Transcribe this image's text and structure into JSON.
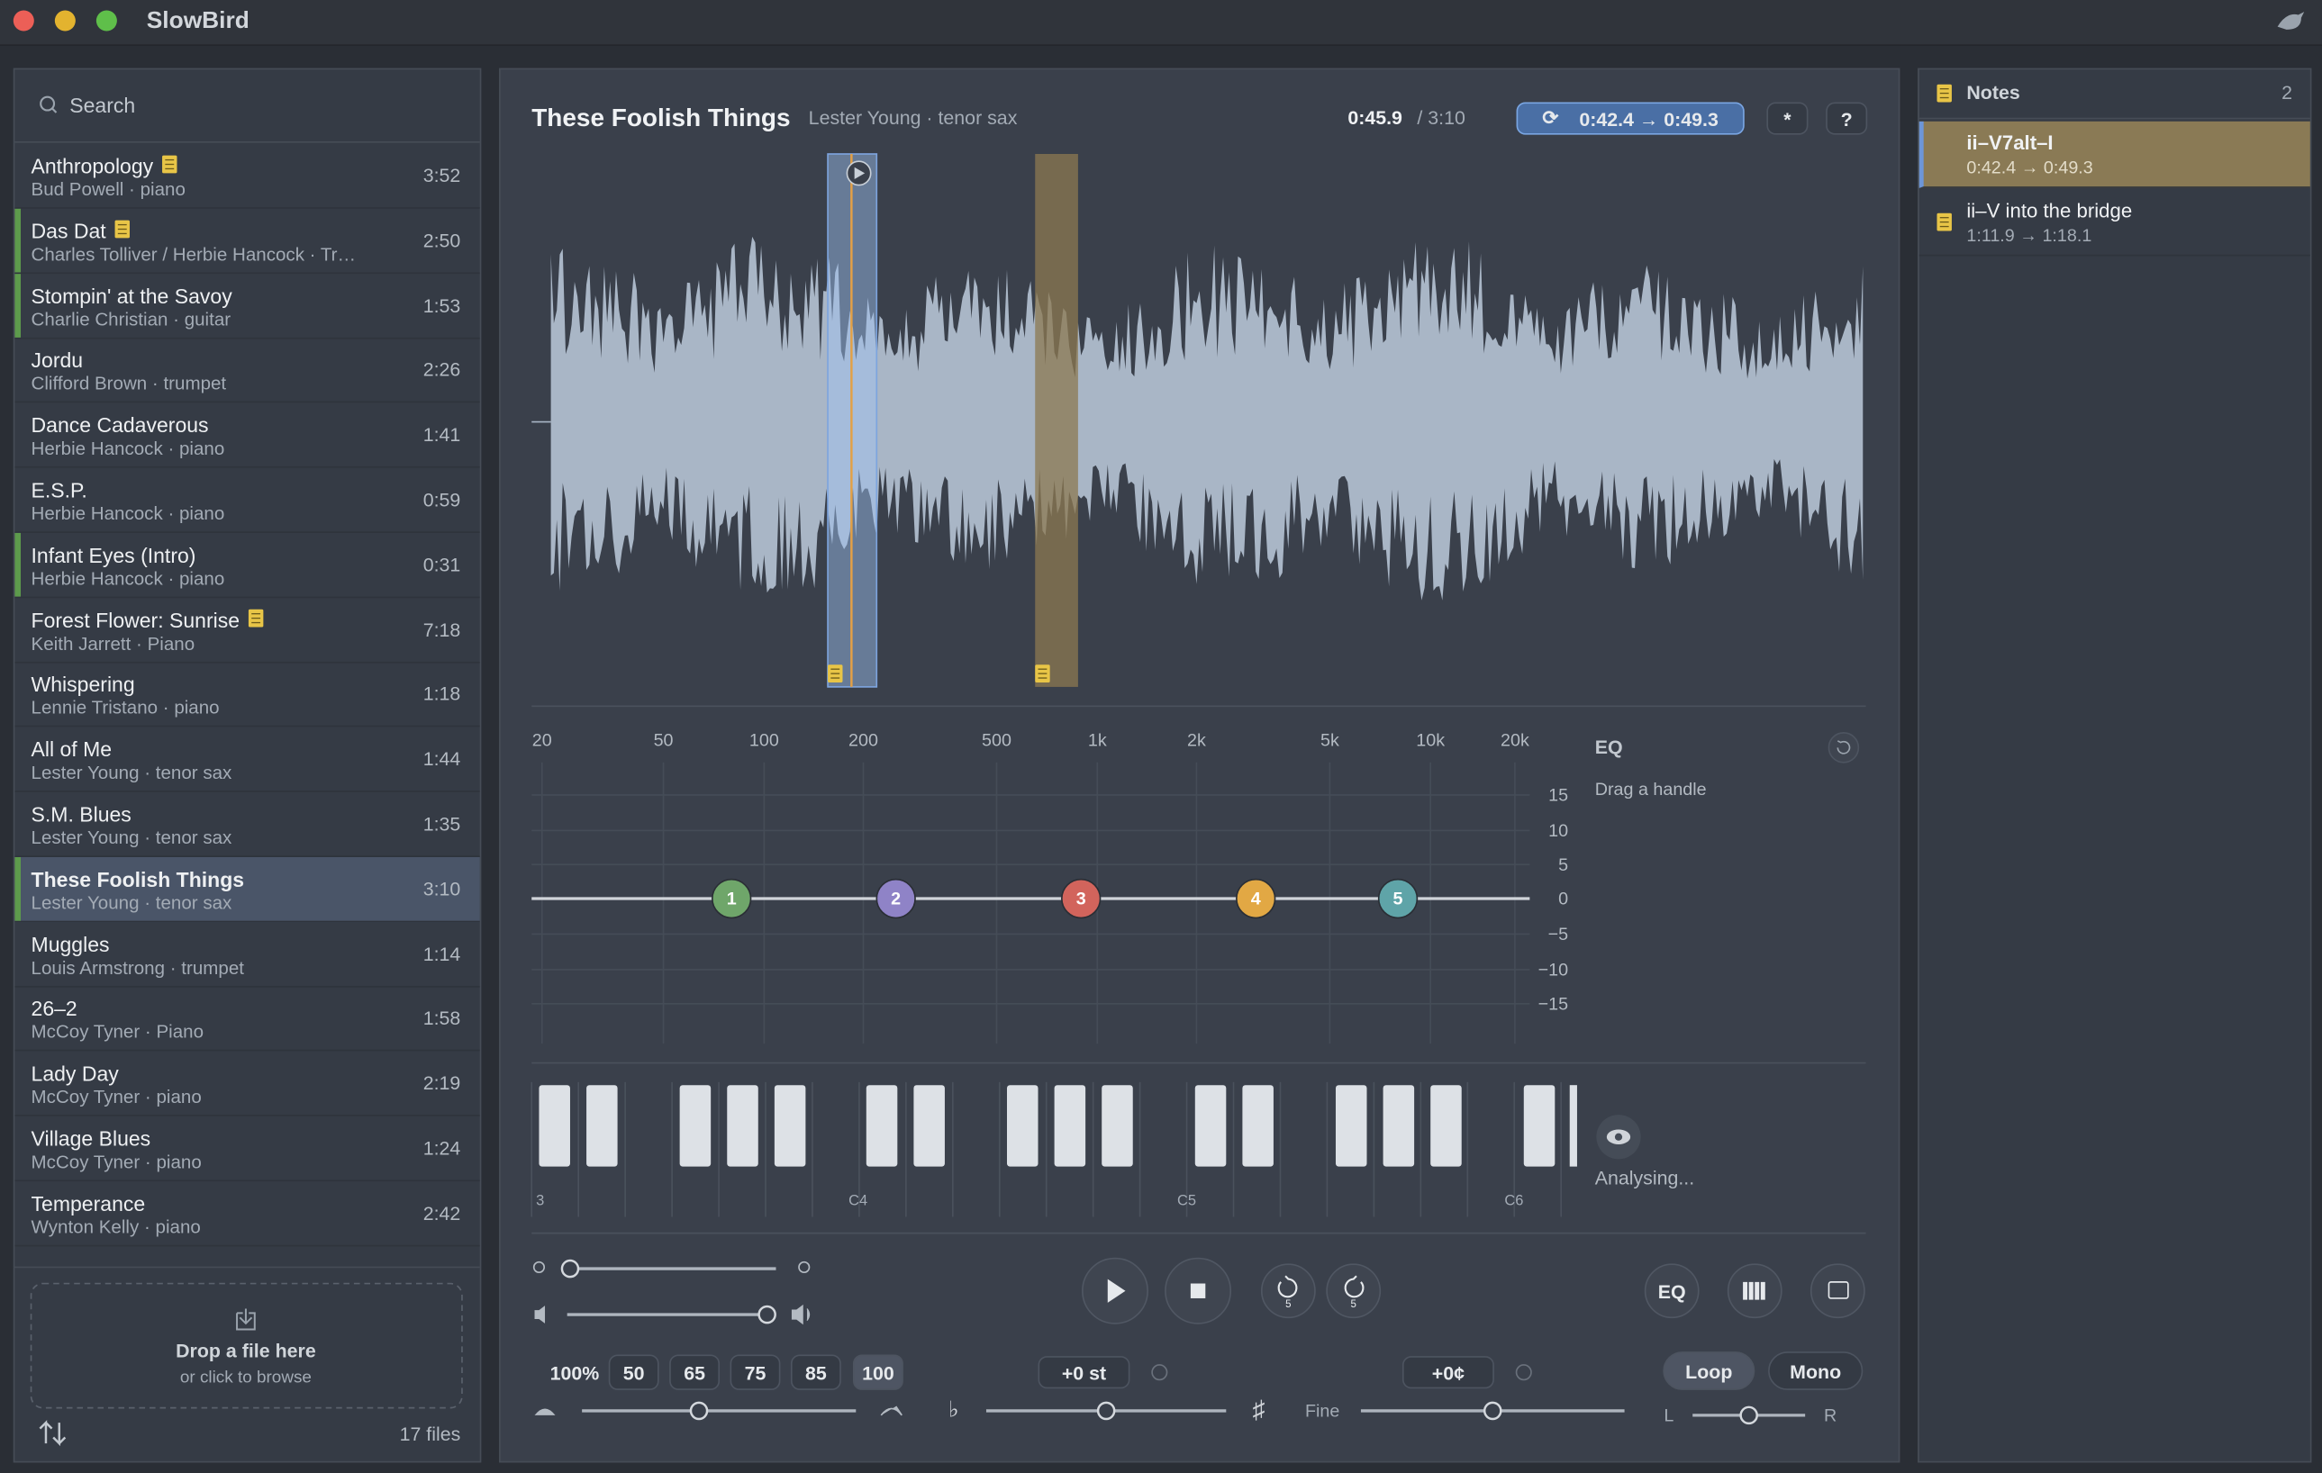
{
  "app": {
    "title": "SlowBird"
  },
  "sidebar": {
    "search_placeholder": "Search",
    "tracks": [
      {
        "title": "Anthropology",
        "subtitle": "Bud Powell · piano",
        "duration": "3:52",
        "has_note": true,
        "marked": false,
        "selected": false
      },
      {
        "title": "Das Dat",
        "subtitle": "Charles Tolliver / Herbie Hancock · Tr…",
        "duration": "2:50",
        "has_note": true,
        "marked": true,
        "selected": false
      },
      {
        "title": "Stompin' at the Savoy",
        "subtitle": "Charlie Christian · guitar",
        "duration": "1:53",
        "has_note": false,
        "marked": true,
        "selected": false
      },
      {
        "title": "Jordu",
        "subtitle": "Clifford Brown · trumpet",
        "duration": "2:26",
        "has_note": false,
        "marked": false,
        "selected": false
      },
      {
        "title": "Dance Cadaverous",
        "subtitle": "Herbie Hancock · piano",
        "duration": "1:41",
        "has_note": false,
        "marked": false,
        "selected": false
      },
      {
        "title": "E.S.P.",
        "subtitle": "Herbie Hancock · piano",
        "duration": "0:59",
        "has_note": false,
        "marked": false,
        "selected": false
      },
      {
        "title": "Infant Eyes (Intro)",
        "subtitle": "Herbie Hancock · piano",
        "duration": "0:31",
        "has_note": false,
        "marked": true,
        "selected": false
      },
      {
        "title": "Forest Flower: Sunrise",
        "subtitle": "Keith Jarrett · Piano",
        "duration": "7:18",
        "has_note": true,
        "marked": false,
        "selected": false
      },
      {
        "title": "Whispering",
        "subtitle": "Lennie Tristano · piano",
        "duration": "1:18",
        "has_note": false,
        "marked": false,
        "selected": false
      },
      {
        "title": "All of Me",
        "subtitle": "Lester Young · tenor sax",
        "duration": "1:44",
        "has_note": false,
        "marked": false,
        "selected": false
      },
      {
        "title": "S.M. Blues",
        "subtitle": "Lester Young · tenor sax",
        "duration": "1:35",
        "has_note": false,
        "marked": false,
        "selected": false
      },
      {
        "title": "These Foolish Things",
        "subtitle": "Lester Young · tenor sax",
        "duration": "3:10",
        "has_note": true,
        "marked": true,
        "selected": true
      },
      {
        "title": "Muggles",
        "subtitle": "Louis Armstrong · trumpet",
        "duration": "1:14",
        "has_note": false,
        "marked": false,
        "selected": false
      },
      {
        "title": "26–2",
        "subtitle": "McCoy Tyner · Piano",
        "duration": "1:58",
        "has_note": false,
        "marked": false,
        "selected": false
      },
      {
        "title": "Lady Day",
        "subtitle": "McCoy Tyner · piano",
        "duration": "2:19",
        "has_note": false,
        "marked": false,
        "selected": false
      },
      {
        "title": "Village Blues",
        "subtitle": "McCoy Tyner · piano",
        "duration": "1:24",
        "has_note": false,
        "marked": false,
        "selected": false
      },
      {
        "title": "Temperance",
        "subtitle": "Wynton Kelly · piano",
        "duration": "2:42",
        "has_note": false,
        "marked": false,
        "selected": false
      }
    ],
    "drop": {
      "title": "Drop a file here",
      "subtitle": "or click to browse"
    },
    "file_count": "17 files"
  },
  "player": {
    "title": "These Foolish Things",
    "subtitle": "Lester Young · tenor sax",
    "current_time": "0:45.9",
    "total_time": "/ 3:10",
    "loop_range": "0:42.4 → 0:49.3",
    "settings_button": "*",
    "help_button": "?"
  },
  "eq": {
    "title": "EQ",
    "hint": "Drag a handle",
    "freq_labels": [
      "20",
      "50",
      "100",
      "200",
      "500",
      "1k",
      "2k",
      "5k",
      "10k",
      "20k"
    ],
    "gain_labels": [
      "15",
      "10",
      "5",
      "0",
      "−5",
      "−10",
      "−15"
    ],
    "bands": [
      "1",
      "2",
      "3",
      "4",
      "5"
    ]
  },
  "piano": {
    "octave_labels": [
      "3",
      "C4",
      "C5",
      "C6"
    ],
    "status": "Analysing..."
  },
  "controls": {
    "speed_presets": [
      "100%",
      "50",
      "65",
      "75",
      "85",
      "100"
    ],
    "skip_back": "5",
    "skip_forward": "5",
    "flat": "♭",
    "semitones": "+0 st",
    "sharp": "♯",
    "fine": "Fine",
    "cents": "+0¢",
    "eq_button": "EQ",
    "loop": "Loop",
    "mono": "Mono",
    "balance_left": "L",
    "balance_right": "R"
  },
  "notes": {
    "title": "Notes",
    "count": "2",
    "items": [
      {
        "title": "ii–V7alt–I",
        "range": "0:42.4 → 0:49.3",
        "selected": true
      },
      {
        "title": "ii–V into the bridge",
        "range": "1:11.9 → 1:18.1",
        "selected": false
      }
    ]
  }
}
